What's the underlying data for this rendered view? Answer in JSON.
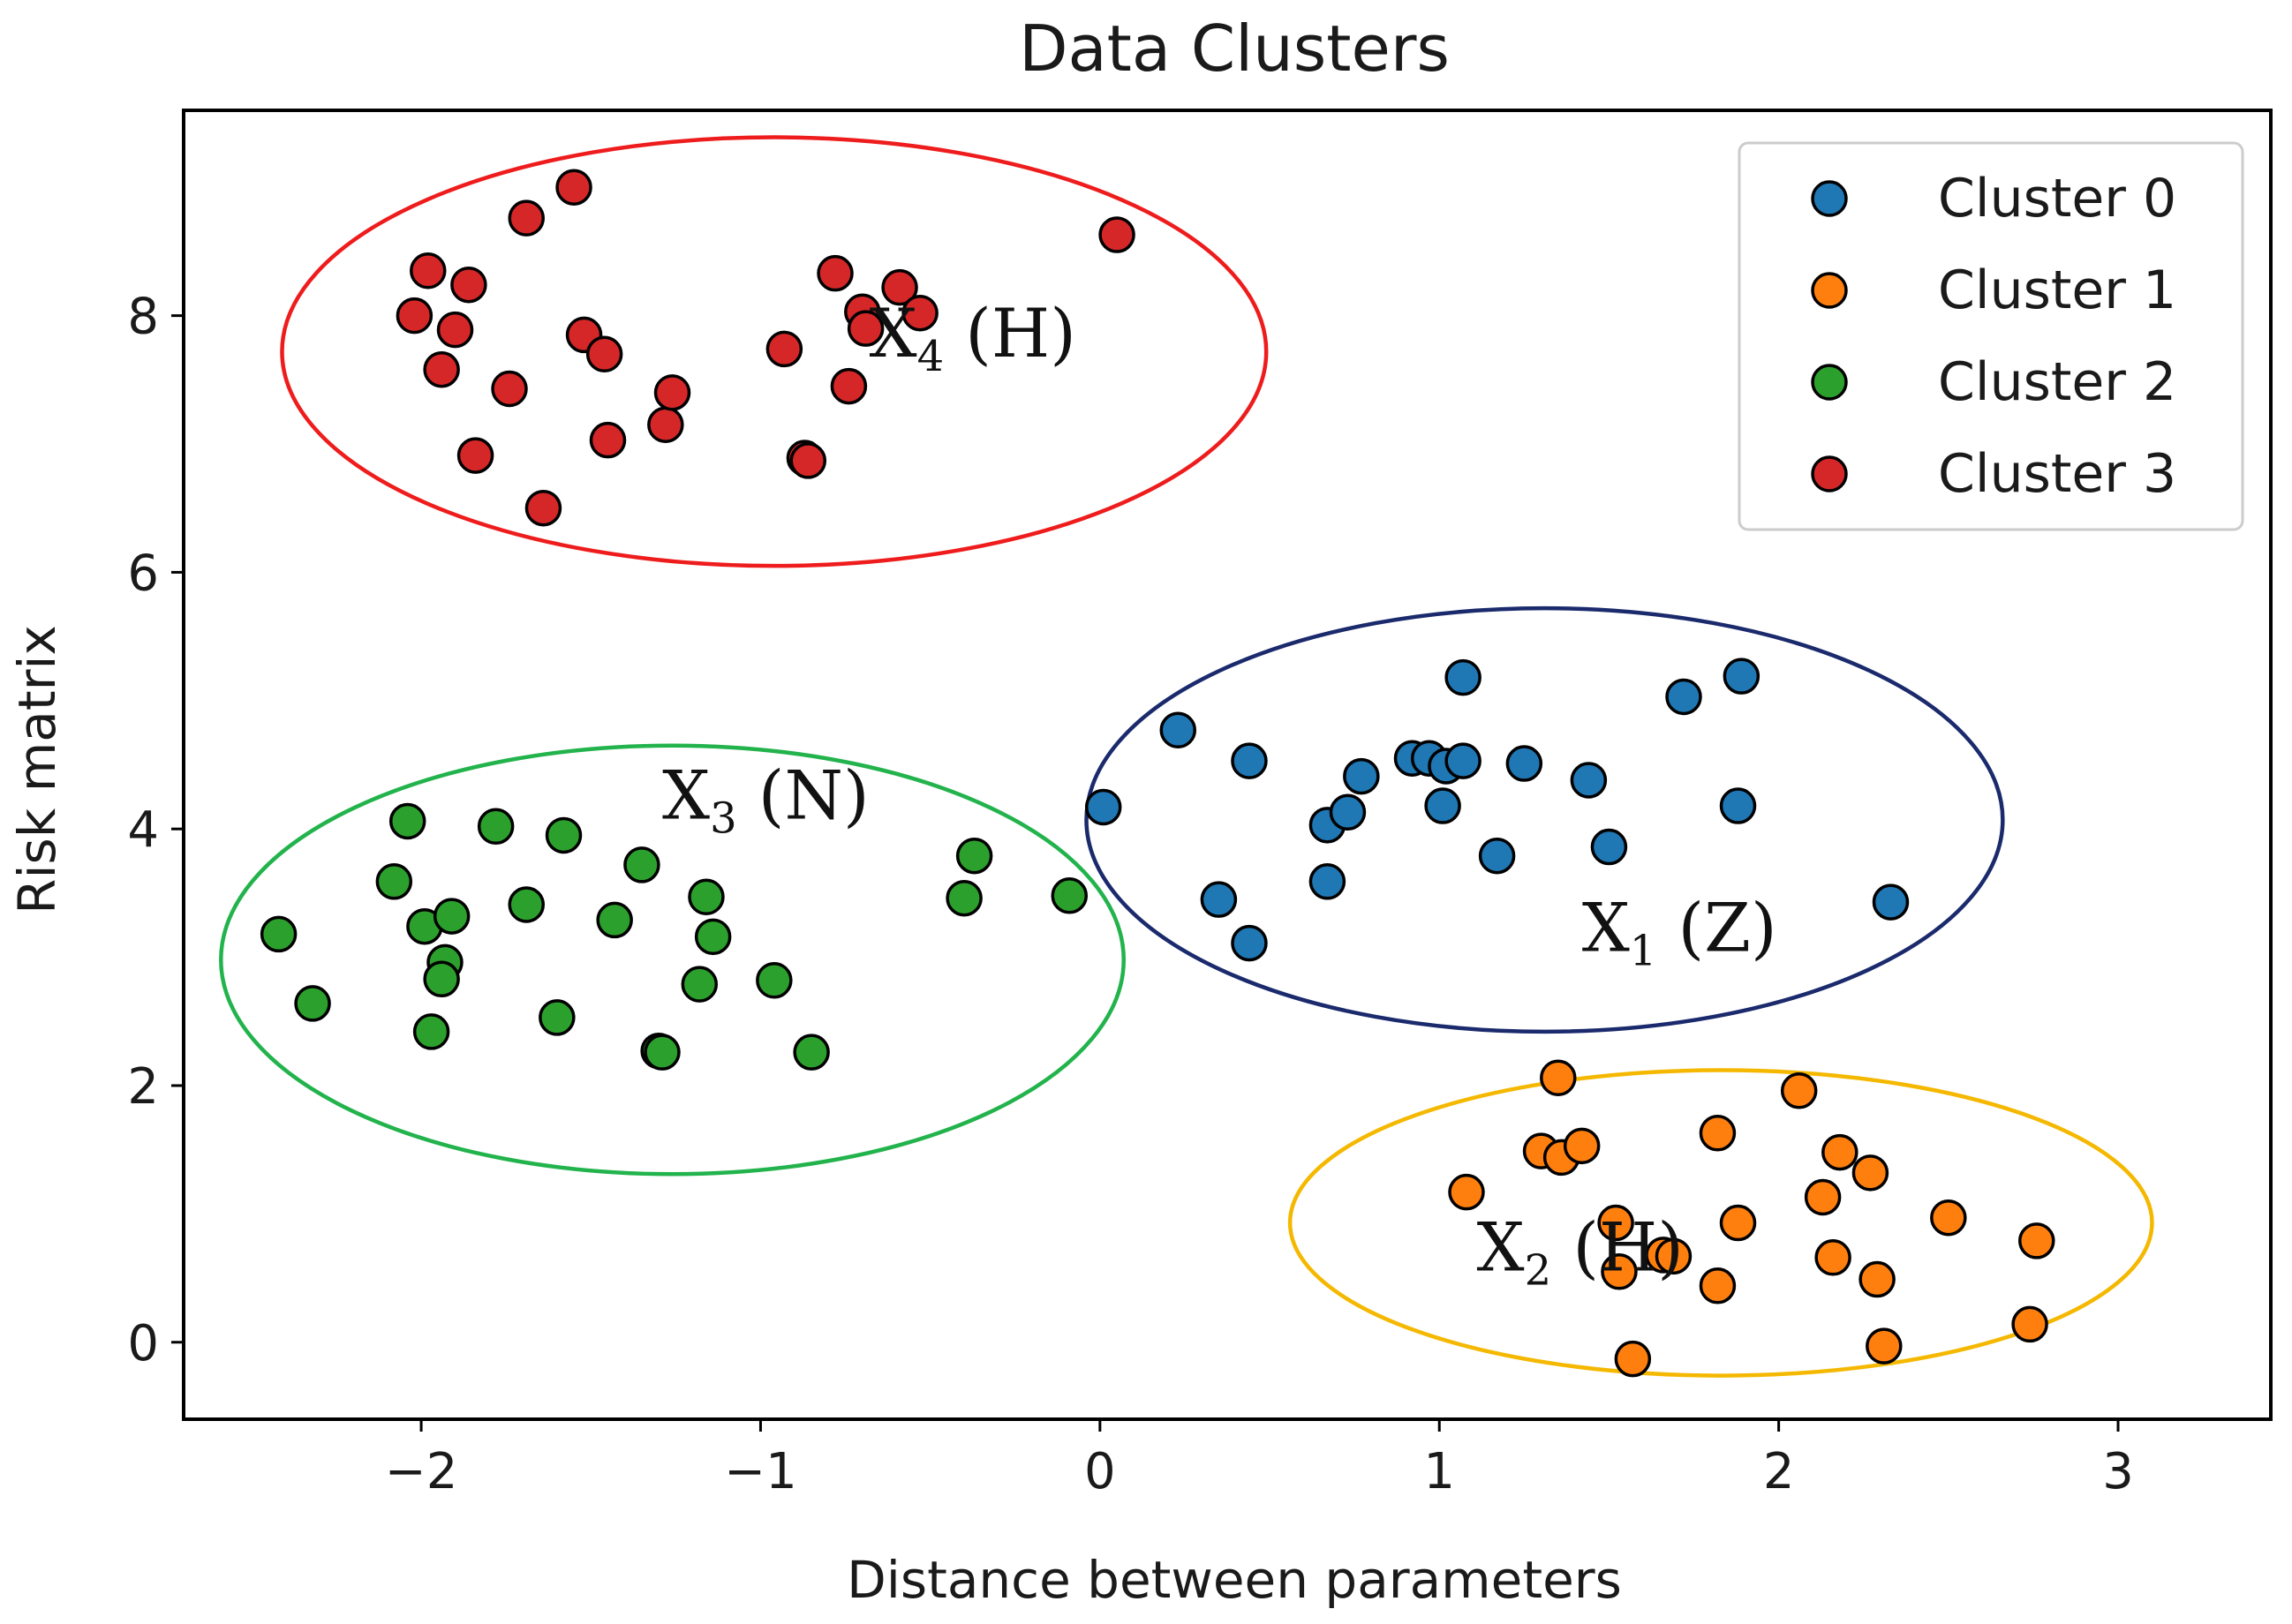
{
  "chart_data": {
    "type": "scatter",
    "title": "Data Clusters",
    "xlabel": "Distance between parameters",
    "ylabel": "Risk matrix",
    "xlim": [
      -2.7,
      3.45
    ],
    "ylim": [
      -0.6,
      9.6
    ],
    "xticks": [
      -2,
      -1,
      0,
      1,
      2,
      3
    ],
    "xtick_labels": [
      "−2",
      "−1",
      "0",
      "1",
      "2",
      "3"
    ],
    "yticks": [
      0,
      2,
      4,
      6,
      8
    ],
    "ytick_labels": [
      "0",
      "2",
      "4",
      "6",
      "8"
    ],
    "grid": false,
    "legend_position": "top-right",
    "series": [
      {
        "name": "Cluster 0",
        "color": "#1f77b4",
        "points": [
          [
            0.01,
            4.17
          ],
          [
            0.23,
            4.77
          ],
          [
            0.44,
            4.53
          ],
          [
            0.35,
            3.45
          ],
          [
            0.44,
            3.11
          ],
          [
            0.67,
            3.59
          ],
          [
            0.67,
            4.03
          ],
          [
            0.73,
            4.13
          ],
          [
            0.77,
            4.41
          ],
          [
            0.92,
            4.55
          ],
          [
            0.97,
            4.55
          ],
          [
            1.02,
            4.49
          ],
          [
            1.01,
            4.18
          ],
          [
            1.07,
            4.53
          ],
          [
            1.07,
            5.18
          ],
          [
            1.17,
            3.79
          ],
          [
            1.25,
            4.51
          ],
          [
            1.44,
            4.38
          ],
          [
            1.5,
            3.86
          ],
          [
            1.72,
            5.03
          ],
          [
            1.88,
            4.18
          ],
          [
            1.89,
            5.19
          ],
          [
            2.33,
            3.43
          ]
        ]
      },
      {
        "name": "Cluster 1",
        "color": "#ff7f0e",
        "points": [
          [
            1.08,
            1.17
          ],
          [
            1.35,
            2.06
          ],
          [
            1.3,
            1.49
          ],
          [
            1.36,
            1.44
          ],
          [
            1.42,
            1.53
          ],
          [
            1.52,
            0.93
          ],
          [
            1.53,
            0.55
          ],
          [
            1.57,
            -0.13
          ],
          [
            1.66,
            0.68
          ],
          [
            1.69,
            0.67
          ],
          [
            1.82,
            1.63
          ],
          [
            1.82,
            0.44
          ],
          [
            1.88,
            0.93
          ],
          [
            2.06,
            1.96
          ],
          [
            2.13,
            1.13
          ],
          [
            2.16,
            0.66
          ],
          [
            2.18,
            1.48
          ],
          [
            2.27,
            1.32
          ],
          [
            2.29,
            0.49
          ],
          [
            2.31,
            -0.03
          ],
          [
            2.5,
            0.97
          ],
          [
            2.74,
            0.14
          ],
          [
            2.76,
            0.79
          ]
        ]
      },
      {
        "name": "Cluster 2",
        "color": "#2ca02c",
        "points": [
          [
            -2.42,
            3.18
          ],
          [
            -2.32,
            2.64
          ],
          [
            -2.08,
            3.59
          ],
          [
            -2.04,
            4.06
          ],
          [
            -1.99,
            3.24
          ],
          [
            -1.97,
            2.42
          ],
          [
            -1.93,
            2.96
          ],
          [
            -1.94,
            2.83
          ],
          [
            -1.91,
            3.32
          ],
          [
            -1.78,
            4.02
          ],
          [
            -1.69,
            3.41
          ],
          [
            -1.6,
            2.53
          ],
          [
            -1.58,
            3.95
          ],
          [
            -1.43,
            3.29
          ],
          [
            -1.35,
            3.72
          ],
          [
            -1.3,
            2.27
          ],
          [
            -1.29,
            2.26
          ],
          [
            -1.16,
            3.47
          ],
          [
            -1.14,
            3.16
          ],
          [
            -1.18,
            2.79
          ],
          [
            -0.96,
            2.82
          ],
          [
            -0.85,
            2.26
          ],
          [
            -0.4,
            3.46
          ],
          [
            -0.37,
            3.79
          ],
          [
            -0.09,
            3.48
          ]
        ]
      },
      {
        "name": "Cluster 3",
        "color": "#d62728",
        "points": [
          [
            -2.02,
            8.0
          ],
          [
            -1.98,
            8.35
          ],
          [
            -1.94,
            7.58
          ],
          [
            -1.9,
            7.89
          ],
          [
            -1.86,
            8.24
          ],
          [
            -1.84,
            6.91
          ],
          [
            -1.74,
            7.43
          ],
          [
            -1.69,
            8.76
          ],
          [
            -1.64,
            6.5
          ],
          [
            -1.55,
            9.0
          ],
          [
            -1.52,
            7.85
          ],
          [
            -1.46,
            7.7
          ],
          [
            -1.45,
            7.03
          ],
          [
            -1.28,
            7.15
          ],
          [
            -1.26,
            7.4
          ],
          [
            -0.93,
            7.74
          ],
          [
            -0.87,
            6.89
          ],
          [
            -0.86,
            6.87
          ],
          [
            -0.78,
            8.33
          ],
          [
            -0.74,
            7.45
          ],
          [
            -0.7,
            8.03
          ],
          [
            -0.69,
            7.9
          ],
          [
            -0.59,
            8.22
          ],
          [
            -0.53,
            8.02
          ],
          [
            0.05,
            8.63
          ]
        ]
      }
    ],
    "annotations": [
      {
        "text": "X",
        "sub": "1",
        "suffix": " (Z)",
        "x": 1.42,
        "y": 3.05
      },
      {
        "text": "X",
        "sub": "2",
        "suffix": " (H)",
        "x": 1.11,
        "y": 0.56
      },
      {
        "text": "X",
        "sub": "3",
        "suffix": " (N)",
        "x": -1.29,
        "y": 4.08
      },
      {
        "text": "X",
        "sub": "4",
        "suffix": " (H)",
        "x": -0.68,
        "y": 7.68
      }
    ],
    "ellipses": [
      {
        "cluster": "Cluster 0",
        "color": "#1a2a6c",
        "cx": 1.31,
        "cy": 4.07,
        "rx": 1.35,
        "ry": 1.65
      },
      {
        "cluster": "Cluster 1",
        "color": "#f5b800",
        "cx": 1.83,
        "cy": 0.93,
        "rx": 1.27,
        "ry": 1.19
      },
      {
        "cluster": "Cluster 2",
        "color": "#22b34c",
        "cx": -1.26,
        "cy": 2.98,
        "rx": 1.33,
        "ry": 1.67
      },
      {
        "cluster": "Cluster 3",
        "color": "#ee1c1c",
        "cx": -0.96,
        "cy": 7.72,
        "rx": 1.45,
        "ry": 1.67
      }
    ]
  }
}
